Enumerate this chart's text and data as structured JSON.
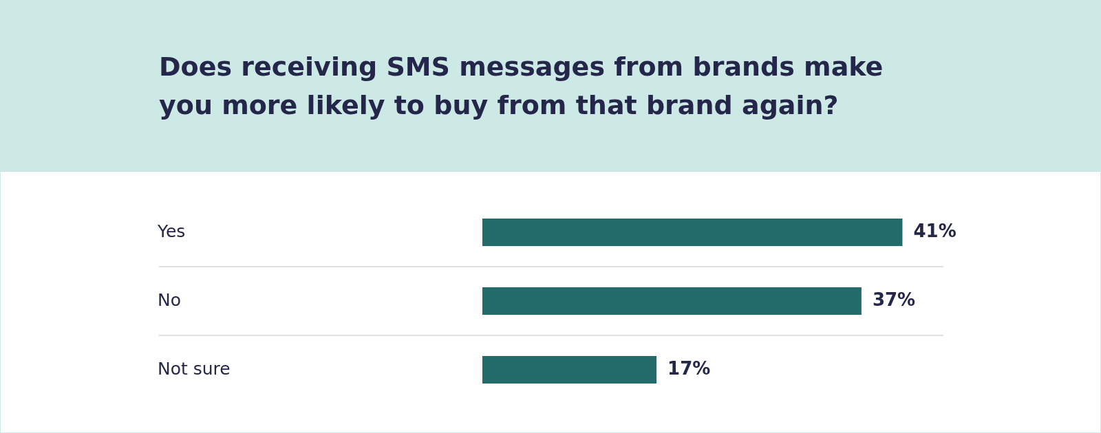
{
  "chart_data": {
    "type": "bar",
    "orientation": "horizontal",
    "title": "Does receiving SMS messages from brands make you more likely to buy from that brand again?",
    "categories": [
      "Yes",
      "No",
      "Not sure"
    ],
    "series": [
      {
        "color": "#236b6b",
        "values": [
          41,
          37,
          17
        ]
      }
    ],
    "value_labels": [
      "41%",
      "37%",
      "17%"
    ],
    "data_labels": true,
    "tick_labels": "y",
    "grid": "y",
    "legend": false
  }
}
